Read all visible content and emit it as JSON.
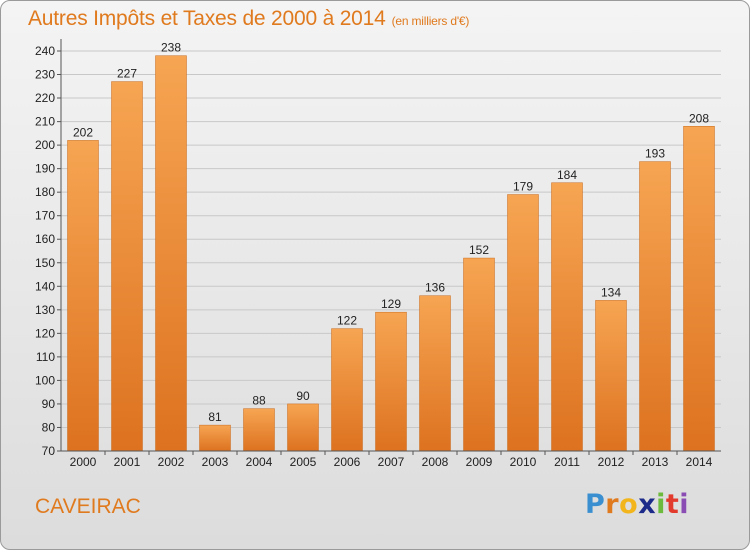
{
  "chart_data": {
    "type": "bar",
    "title": "Autres Impôts et Taxes de 2000 à 2014",
    "subtitle": "(en milliers d'€)",
    "categories": [
      "2000",
      "2001",
      "2002",
      "2003",
      "2004",
      "2005",
      "2006",
      "2007",
      "2008",
      "2009",
      "2010",
      "2011",
      "2012",
      "2013",
      "2014"
    ],
    "values": [
      202,
      227,
      238,
      81,
      88,
      90,
      122,
      129,
      136,
      152,
      179,
      184,
      134,
      193,
      208
    ],
    "ylim": [
      70,
      240
    ],
    "yticks": [
      70,
      80,
      90,
      100,
      110,
      120,
      130,
      140,
      150,
      160,
      170,
      180,
      190,
      200,
      210,
      220,
      230,
      240
    ],
    "grid": true,
    "bar_color": "#f0963a"
  },
  "footer": {
    "place": "CAVEIRAC",
    "logo_letters": [
      "P",
      "r",
      "o",
      "x",
      "i",
      "t",
      "i"
    ],
    "logo_colors": [
      "#3a8fd0",
      "#e07a1e",
      "#f2b51c",
      "#1c2a8a",
      "#6dbb3c",
      "#e23b2e",
      "#8a4db3"
    ]
  }
}
